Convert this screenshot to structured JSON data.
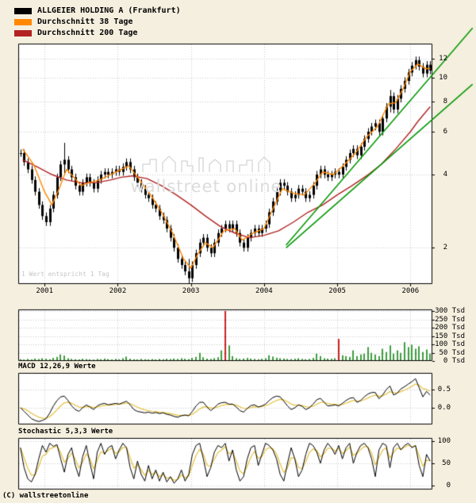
{
  "page": {
    "background": "#f5efdf",
    "footer": "(C) wallstreetonline"
  },
  "legend": {
    "items": [
      {
        "label": "ALLGEIER HOLDING A (Frankfurt)",
        "color": "#000000"
      },
      {
        "label": "Durchschnitt 38 Tage",
        "color": "#ff8800"
      },
      {
        "label": "Durchschnitt 200 Tage",
        "color": "#b22222"
      }
    ]
  },
  "watermark": {
    "text": "wallstreet online"
  },
  "main_note": "1 Wert entspricht 1 Tag",
  "chart_data": [
    {
      "type": "candlestick",
      "name": "price",
      "title": "ALLGEIER HOLDING A (Frankfurt)",
      "y_scale": "log",
      "x_range": [
        2000.64,
        2006.3
      ],
      "y_range": [
        1.42,
        13.8
      ],
      "x_ticks": [
        {
          "v": 2001,
          "label": "2001"
        },
        {
          "v": 2002,
          "label": "2002"
        },
        {
          "v": 2003,
          "label": "2003"
        },
        {
          "v": 2004,
          "label": "2004"
        },
        {
          "v": 2005,
          "label": "2005"
        },
        {
          "v": 2006,
          "label": "2006"
        }
      ],
      "y_ticks": [
        {
          "v": 12,
          "label": "12"
        },
        {
          "v": 10,
          "label": "10"
        },
        {
          "v": 8,
          "label": "8"
        },
        {
          "v": 6,
          "label": "6"
        },
        {
          "v": 4,
          "label": "4"
        },
        {
          "v": 2,
          "label": "2"
        }
      ],
      "x_start": 2000.67,
      "x_step": 0.05,
      "close": [
        4.9,
        4.5,
        4.2,
        3.8,
        3.4,
        3.0,
        2.7,
        2.55,
        2.9,
        3.3,
        3.9,
        4.4,
        4.6,
        4.2,
        3.9,
        3.6,
        3.4,
        3.7,
        3.9,
        3.7,
        3.5,
        3.8,
        4.0,
        4.1,
        4.0,
        4.1,
        4.2,
        4.1,
        4.3,
        4.5,
        4.2,
        3.9,
        3.7,
        3.5,
        3.3,
        3.2,
        3.0,
        2.9,
        2.7,
        2.6,
        2.4,
        2.2,
        2.0,
        1.8,
        1.7,
        1.6,
        1.5,
        1.7,
        1.9,
        2.1,
        2.2,
        2.0,
        1.9,
        2.1,
        2.3,
        2.4,
        2.5,
        2.4,
        2.5,
        2.3,
        2.1,
        2.0,
        2.2,
        2.3,
        2.4,
        2.3,
        2.4,
        2.5,
        2.8,
        3.1,
        3.4,
        3.7,
        3.6,
        3.4,
        3.2,
        3.3,
        3.5,
        3.4,
        3.2,
        3.3,
        3.6,
        4.0,
        4.2,
        4.0,
        3.9,
        4.0,
        4.1,
        4.0,
        4.3,
        4.6,
        4.9,
        5.1,
        4.8,
        5.2,
        5.6,
        6.0,
        6.3,
        6.5,
        6.0,
        6.8,
        7.6,
        8.4,
        7.4,
        8.2,
        9.0,
        9.7,
        10.5,
        11.2,
        11.8,
        11.1,
        10.4,
        11.3,
        10.7
      ],
      "wicks": [
        {
          "x": 2001.27,
          "hi": 5.4,
          "lo": 4.0
        },
        {
          "x": 2002.97,
          "hi": 1.8,
          "lo": 1.42
        },
        {
          "x": 2005.72,
          "hi": 8.9,
          "lo": 7.2
        }
      ],
      "ma38": {
        "name": "Durchschnitt 38 Tage",
        "color": "#ff8800",
        "x": [
          2000.7,
          2000.85,
          2001.0,
          2001.1,
          2001.2,
          2001.3,
          2001.4,
          2001.5,
          2001.6,
          2001.75,
          2001.9,
          2002.05,
          2002.15,
          2002.3,
          2002.45,
          2002.6,
          2002.75,
          2002.9,
          2003.0,
          2003.1,
          2003.2,
          2003.3,
          2003.45,
          2003.6,
          2003.7,
          2003.85,
          2004.0,
          2004.1,
          2004.25,
          2004.4,
          2004.55,
          2004.7,
          2004.8,
          2004.95,
          2005.1,
          2005.25,
          2005.4,
          2005.55,
          2005.7,
          2005.8,
          2005.9,
          2006.0,
          2006.1,
          2006.2,
          2006.27
        ],
        "y": [
          5.1,
          4.4,
          3.4,
          3.0,
          3.5,
          4.2,
          3.9,
          3.6,
          3.7,
          3.8,
          4.0,
          4.2,
          4.35,
          3.8,
          3.3,
          2.8,
          2.3,
          1.8,
          1.65,
          1.9,
          2.1,
          2.0,
          2.35,
          2.4,
          2.15,
          2.3,
          2.4,
          2.8,
          3.5,
          3.35,
          3.3,
          3.7,
          4.1,
          4.0,
          4.4,
          4.9,
          5.7,
          6.3,
          7.8,
          7.9,
          9.0,
          10.6,
          11.4,
          10.9,
          10.9
        ]
      },
      "ma200": {
        "name": "Durchschnitt 200 Tage",
        "color": "#b22222",
        "x": [
          2000.7,
          2000.9,
          2001.1,
          2001.3,
          2001.5,
          2001.7,
          2001.9,
          2002.05,
          2002.2,
          2002.4,
          2002.6,
          2002.8,
          2003.0,
          2003.2,
          2003.4,
          2003.6,
          2003.8,
          2004.0,
          2004.2,
          2004.4,
          2004.6,
          2004.8,
          2005.0,
          2005.2,
          2005.4,
          2005.6,
          2005.8,
          2006.0,
          2006.1,
          2006.27
        ],
        "y": [
          4.6,
          4.3,
          4.0,
          3.8,
          3.7,
          3.7,
          3.8,
          3.9,
          3.95,
          3.85,
          3.6,
          3.3,
          3.0,
          2.7,
          2.45,
          2.3,
          2.2,
          2.25,
          2.35,
          2.55,
          2.8,
          3.0,
          3.3,
          3.6,
          3.95,
          4.4,
          5.1,
          6.0,
          6.6,
          7.6
        ]
      },
      "trend_lines": [
        {
          "x1": 2004.3,
          "y1": 2.05,
          "x2": 2006.85,
          "y2": 16.0,
          "color": "#009600"
        },
        {
          "x1": 2004.3,
          "y1": 2.0,
          "x2": 2006.85,
          "y2": 9.4,
          "color": "#009600"
        }
      ],
      "note": "1 Wert entspricht 1 Tag"
    },
    {
      "type": "bar",
      "name": "volume",
      "unit": "Tsd",
      "y_range": [
        0,
        310
      ],
      "y_ticks": [
        {
          "v": 300,
          "label": "300 Tsd"
        },
        {
          "v": 250,
          "label": "250 Tsd"
        },
        {
          "v": 200,
          "label": "200 Tsd"
        },
        {
          "v": 150,
          "label": "150 Tsd"
        },
        {
          "v": 100,
          "label": "100 Tsd"
        },
        {
          "v": 50,
          "label": "50 Tsd"
        },
        {
          "v": 0,
          "label": "0 Tsd"
        }
      ],
      "bar_color": "#3f9e3f",
      "spike_color": "#cc2222",
      "red_indices": [
        56,
        87
      ],
      "values": [
        6,
        4,
        8,
        5,
        10,
        7,
        12,
        9,
        6,
        14,
        20,
        35,
        28,
        12,
        8,
        6,
        5,
        9,
        7,
        5,
        4,
        8,
        6,
        10,
        7,
        5,
        8,
        6,
        12,
        22,
        9,
        6,
        5,
        8,
        6,
        5,
        7,
        5,
        8,
        6,
        9,
        7,
        10,
        8,
        12,
        9,
        7,
        15,
        20,
        45,
        18,
        10,
        8,
        12,
        18,
        60,
        300,
        90,
        25,
        12,
        8,
        10,
        14,
        10,
        8,
        6,
        9,
        12,
        30,
        22,
        15,
        12,
        10,
        8,
        7,
        9,
        12,
        8,
        6,
        8,
        14,
        40,
        25,
        12,
        10,
        9,
        12,
        130,
        30,
        25,
        20,
        60,
        25,
        35,
        40,
        80,
        45,
        35,
        25,
        70,
        50,
        90,
        40,
        60,
        45,
        110,
        80,
        95,
        70,
        85,
        50,
        65,
        40
      ]
    },
    {
      "type": "line",
      "name": "macd",
      "label": "MACD 12,26,9 Werte",
      "y_range": [
        -0.46,
        0.96
      ],
      "y_ticks": [
        {
          "v": 0.5,
          "label": "0.5"
        },
        {
          "v": 0,
          "label": "0.0"
        }
      ],
      "line_color": "#000000",
      "signal_color": "#e6c23c",
      "values": [
        0.0,
        -0.1,
        -0.2,
        -0.3,
        -0.35,
        -0.38,
        -0.35,
        -0.3,
        -0.15,
        0.05,
        0.2,
        0.3,
        0.32,
        0.2,
        0.05,
        -0.05,
        -0.1,
        0.0,
        0.08,
        0.02,
        -0.05,
        0.05,
        0.1,
        0.12,
        0.08,
        0.1,
        0.12,
        0.1,
        0.14,
        0.18,
        0.08,
        -0.05,
        -0.1,
        -0.12,
        -0.14,
        -0.12,
        -0.15,
        -0.13,
        -0.16,
        -0.14,
        -0.18,
        -0.2,
        -0.24,
        -0.26,
        -0.22,
        -0.2,
        -0.22,
        -0.1,
        0.05,
        0.15,
        0.15,
        0.02,
        -0.08,
        0.0,
        0.1,
        0.14,
        0.15,
        0.1,
        0.1,
        0.02,
        -0.08,
        -0.12,
        -0.02,
        0.06,
        0.08,
        0.02,
        0.05,
        0.1,
        0.2,
        0.28,
        0.32,
        0.3,
        0.18,
        0.05,
        -0.05,
        0.0,
        0.08,
        0.04,
        -0.05,
        0.0,
        0.1,
        0.22,
        0.26,
        0.15,
        0.05,
        0.06,
        0.08,
        0.05,
        0.12,
        0.2,
        0.26,
        0.28,
        0.15,
        0.2,
        0.3,
        0.38,
        0.42,
        0.42,
        0.25,
        0.35,
        0.5,
        0.6,
        0.35,
        0.4,
        0.52,
        0.58,
        0.65,
        0.72,
        0.8,
        0.55,
        0.3,
        0.45,
        0.35
      ]
    },
    {
      "type": "line",
      "name": "stochastic",
      "label": "Stochastic 5,3,3 Werte",
      "y_range": [
        -9,
        107
      ],
      "y_ticks": [
        {
          "v": 100,
          "label": "100"
        },
        {
          "v": 50,
          "label": "50"
        },
        {
          "v": 0,
          "label": "0"
        }
      ],
      "line_color": "#000000",
      "signal_color": "#e6c23c",
      "values": [
        85,
        40,
        15,
        8,
        25,
        60,
        90,
        75,
        95,
        88,
        92,
        60,
        30,
        70,
        85,
        45,
        20,
        65,
        90,
        50,
        15,
        75,
        95,
        70,
        85,
        90,
        60,
        80,
        95,
        85,
        40,
        15,
        55,
        25,
        10,
        45,
        15,
        35,
        10,
        30,
        8,
        20,
        5,
        15,
        35,
        10,
        25,
        70,
        90,
        95,
        60,
        20,
        40,
        75,
        90,
        85,
        95,
        55,
        80,
        35,
        10,
        20,
        60,
        85,
        90,
        45,
        70,
        95,
        90,
        80,
        60,
        25,
        10,
        50,
        85,
        60,
        20,
        35,
        70,
        95,
        90,
        75,
        50,
        80,
        95,
        85,
        70,
        90,
        60,
        85,
        95,
        50,
        75,
        90,
        95,
        85,
        60,
        20,
        80,
        95,
        90,
        40,
        85,
        95,
        80,
        90,
        95,
        85,
        90,
        45,
        20,
        70,
        55
      ]
    }
  ]
}
